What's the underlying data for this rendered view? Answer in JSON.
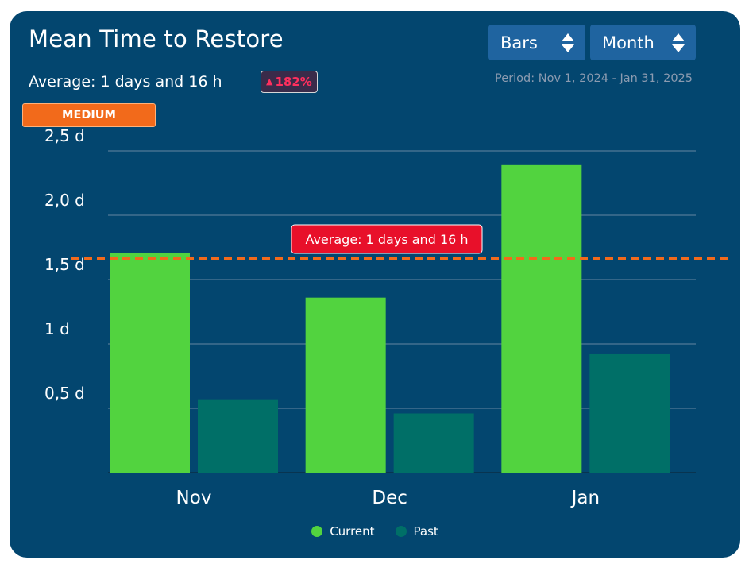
{
  "header": {
    "title": "Mean Time to Restore",
    "average_text": "Average: 1 days and 16 h",
    "trend": "182%",
    "trend_direction": "up",
    "period": "Period: Nov 1, 2024 - Jan 31, 2025",
    "level": "MEDIUM"
  },
  "controls": {
    "chart_type": "Bars",
    "granularity": "Month"
  },
  "colors": {
    "background": "#03466f",
    "current": "#52d33f",
    "past": "#006f67",
    "average_line": "#f26a1b",
    "average_label_bg": "#e8102a",
    "grid": "#8fa3b6"
  },
  "chart_data": {
    "type": "bar",
    "title": "Mean Time to Restore",
    "categories": [
      "Nov",
      "Dec",
      "Jan"
    ],
    "series": [
      {
        "name": "Current",
        "values": [
          1.71,
          1.36,
          2.39
        ]
      },
      {
        "name": "Past",
        "values": [
          0.57,
          0.46,
          0.92
        ]
      }
    ],
    "y_ticks": [
      {
        "value": 0.5,
        "label": "0,5 d"
      },
      {
        "value": 1.0,
        "label": "1 d"
      },
      {
        "value": 1.5,
        "label": "1,5 d"
      },
      {
        "value": 2.0,
        "label": "2,0 d"
      },
      {
        "value": 2.5,
        "label": "2,5 d"
      }
    ],
    "ylim": [
      0,
      2.5
    ],
    "average": {
      "value": 1.6667,
      "label": "Average: 1 days and 16 h"
    },
    "grid": true,
    "legend_position": "bottom"
  }
}
